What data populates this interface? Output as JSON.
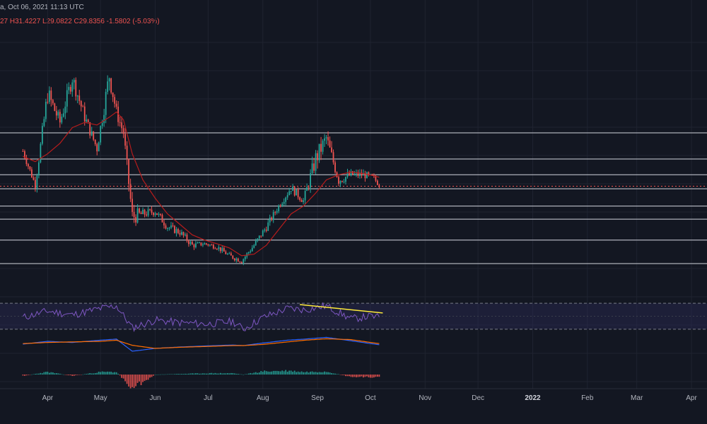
{
  "header": {
    "line1": "a, Oct 06, 2021 11:13 UTC",
    "line2": "27  H31.4227  L29.0822  C29.8356  -1.5802 (-5.03%)"
  },
  "colors": {
    "background": "#131722",
    "up_candle": "#26a69a",
    "down_candle": "#ef5350",
    "wick_neutral": "#b2b5be",
    "ma_line": "#b71c1c",
    "level_line": "#d1d4dc",
    "rsi_line": "#7e57c2",
    "rsi_band": "#2a2a55",
    "trendline": "#ffeb3b",
    "macd_line": "#2962ff",
    "signal_line": "#ff6d00"
  },
  "x_axis": {
    "ticks": [
      {
        "label": "Apr",
        "bold": false
      },
      {
        "label": "May",
        "bold": false
      },
      {
        "label": "Jun",
        "bold": false
      },
      {
        "label": "Jul",
        "bold": false
      },
      {
        "label": "Aug",
        "bold": false
      },
      {
        "label": "Sep",
        "bold": false
      },
      {
        "label": "Oct",
        "bold": false
      },
      {
        "label": "Nov",
        "bold": false
      },
      {
        "label": "Dec",
        "bold": false
      },
      {
        "label": "2022",
        "bold": true
      },
      {
        "label": "Feb",
        "bold": false
      },
      {
        "label": "Mar",
        "bold": false
      },
      {
        "label": "Apr",
        "bold": false
      }
    ]
  },
  "chart_data": {
    "type": "line",
    "title": "",
    "xlabel": "",
    "ylabel": "",
    "price": {
      "x": [
        "2021-03-18",
        "2021-03-25",
        "2021-04-01",
        "2021-04-08",
        "2021-04-15",
        "2021-04-22",
        "2021-04-29",
        "2021-05-06",
        "2021-05-10",
        "2021-05-14",
        "2021-05-19",
        "2021-05-25",
        "2021-06-01",
        "2021-06-08",
        "2021-06-15",
        "2021-06-22",
        "2021-06-29",
        "2021-07-06",
        "2021-07-13",
        "2021-07-20",
        "2021-07-27",
        "2021-08-03",
        "2021-08-10",
        "2021-08-17",
        "2021-08-24",
        "2021-08-31",
        "2021-09-06",
        "2021-09-13",
        "2021-09-20",
        "2021-09-27",
        "2021-10-03",
        "2021-10-06"
      ],
      "close": [
        36.5,
        30.0,
        47.5,
        42.0,
        50.5,
        43.0,
        37.0,
        51.0,
        44.0,
        40.0,
        24.0,
        24.5,
        25.0,
        22.0,
        21.0,
        18.5,
        18.8,
        18.2,
        16.5,
        15.5,
        18.5,
        22.0,
        26.0,
        29.5,
        27.0,
        35.0,
        39.0,
        31.0,
        32.0,
        32.0,
        31.4,
        29.8
      ],
      "high": [
        38.0,
        34.0,
        49.0,
        45.0,
        52.0,
        46.0,
        41.0,
        53.0,
        48.0,
        44.0,
        30.0,
        27.0,
        27.5,
        24.0,
        22.5,
        20.0,
        19.5,
        19.5,
        18.0,
        17.0,
        19.5,
        23.5,
        28.0,
        31.5,
        30.0,
        37.0,
        40.5,
        36.0,
        34.0,
        33.5,
        33.8,
        31.4
      ],
      "low": [
        32.0,
        28.5,
        34.0,
        35.0,
        40.0,
        36.5,
        33.0,
        36.5,
        38.0,
        34.5,
        16.0,
        20.0,
        21.5,
        18.0,
        17.0,
        15.0,
        16.5,
        15.5,
        14.0,
        13.0,
        14.5,
        17.5,
        23.0,
        25.0,
        24.5,
        22.0,
        29.0,
        27.5,
        27.5,
        27.5,
        29.5,
        29.1
      ],
      "ma_close": [
        35.5,
        34.5,
        36.0,
        38.0,
        41.0,
        42.0,
        41.5,
        43.0,
        44.0,
        42.5,
        36.0,
        31.0,
        27.5,
        24.5,
        22.5,
        20.5,
        19.5,
        18.8,
        18.0,
        16.5,
        16.8,
        18.5,
        21.5,
        24.5,
        26.0,
        28.5,
        31.0,
        32.0,
        32.5,
        32.2,
        31.8,
        31.5
      ],
      "levels": [
        40.0,
        35.0,
        32.0,
        29.3,
        26.0,
        23.5,
        19.5,
        15.0
      ],
      "ylim": [
        10,
        60
      ]
    },
    "rsi": {
      "x": [
        "2021-03-18",
        "2021-04-01",
        "2021-04-15",
        "2021-05-01",
        "2021-05-10",
        "2021-05-19",
        "2021-06-01",
        "2021-06-15",
        "2021-07-01",
        "2021-07-15",
        "2021-07-21",
        "2021-08-01",
        "2021-08-15",
        "2021-08-25",
        "2021-09-06",
        "2021-09-20",
        "2021-10-01",
        "2021-10-06"
      ],
      "values": [
        48,
        58,
        52,
        62,
        66,
        32,
        44,
        40,
        38,
        42,
        30,
        48,
        62,
        60,
        66,
        46,
        50,
        48
      ],
      "upper": 70,
      "lower": 30,
      "ylim": [
        20,
        80
      ],
      "trendline": {
        "x": [
          "2021-08-22",
          "2021-10-08"
        ],
        "y": [
          68,
          55
        ]
      }
    },
    "macd": {
      "x": [
        "2021-03-18",
        "2021-04-01",
        "2021-04-15",
        "2021-05-01",
        "2021-05-10",
        "2021-05-19",
        "2021-06-01",
        "2021-06-15",
        "2021-07-01",
        "2021-07-15",
        "2021-07-21",
        "2021-08-01",
        "2021-08-15",
        "2021-08-25",
        "2021-09-06",
        "2021-09-20",
        "2021-10-01",
        "2021-10-06"
      ],
      "macd": [
        0.0,
        1.0,
        0.6,
        1.4,
        1.8,
        -2.5,
        -1.5,
        -1.0,
        -0.6,
        -0.3,
        -0.5,
        0.4,
        1.4,
        1.8,
        2.4,
        1.2,
        0.2,
        -0.2
      ],
      "signal": [
        0.2,
        0.6,
        0.8,
        1.0,
        1.4,
        -0.4,
        -1.5,
        -1.1,
        -0.8,
        -0.5,
        -0.5,
        -0.1,
        0.8,
        1.4,
        1.9,
        1.6,
        0.6,
        0.2
      ],
      "histogram": [
        -0.2,
        0.4,
        -0.2,
        0.4,
        0.4,
        -2.1,
        0.0,
        0.1,
        0.2,
        0.2,
        0.0,
        0.5,
        0.6,
        0.4,
        0.5,
        -0.4,
        -0.4,
        -0.4
      ],
      "ylim": [
        -3,
        3
      ]
    }
  }
}
